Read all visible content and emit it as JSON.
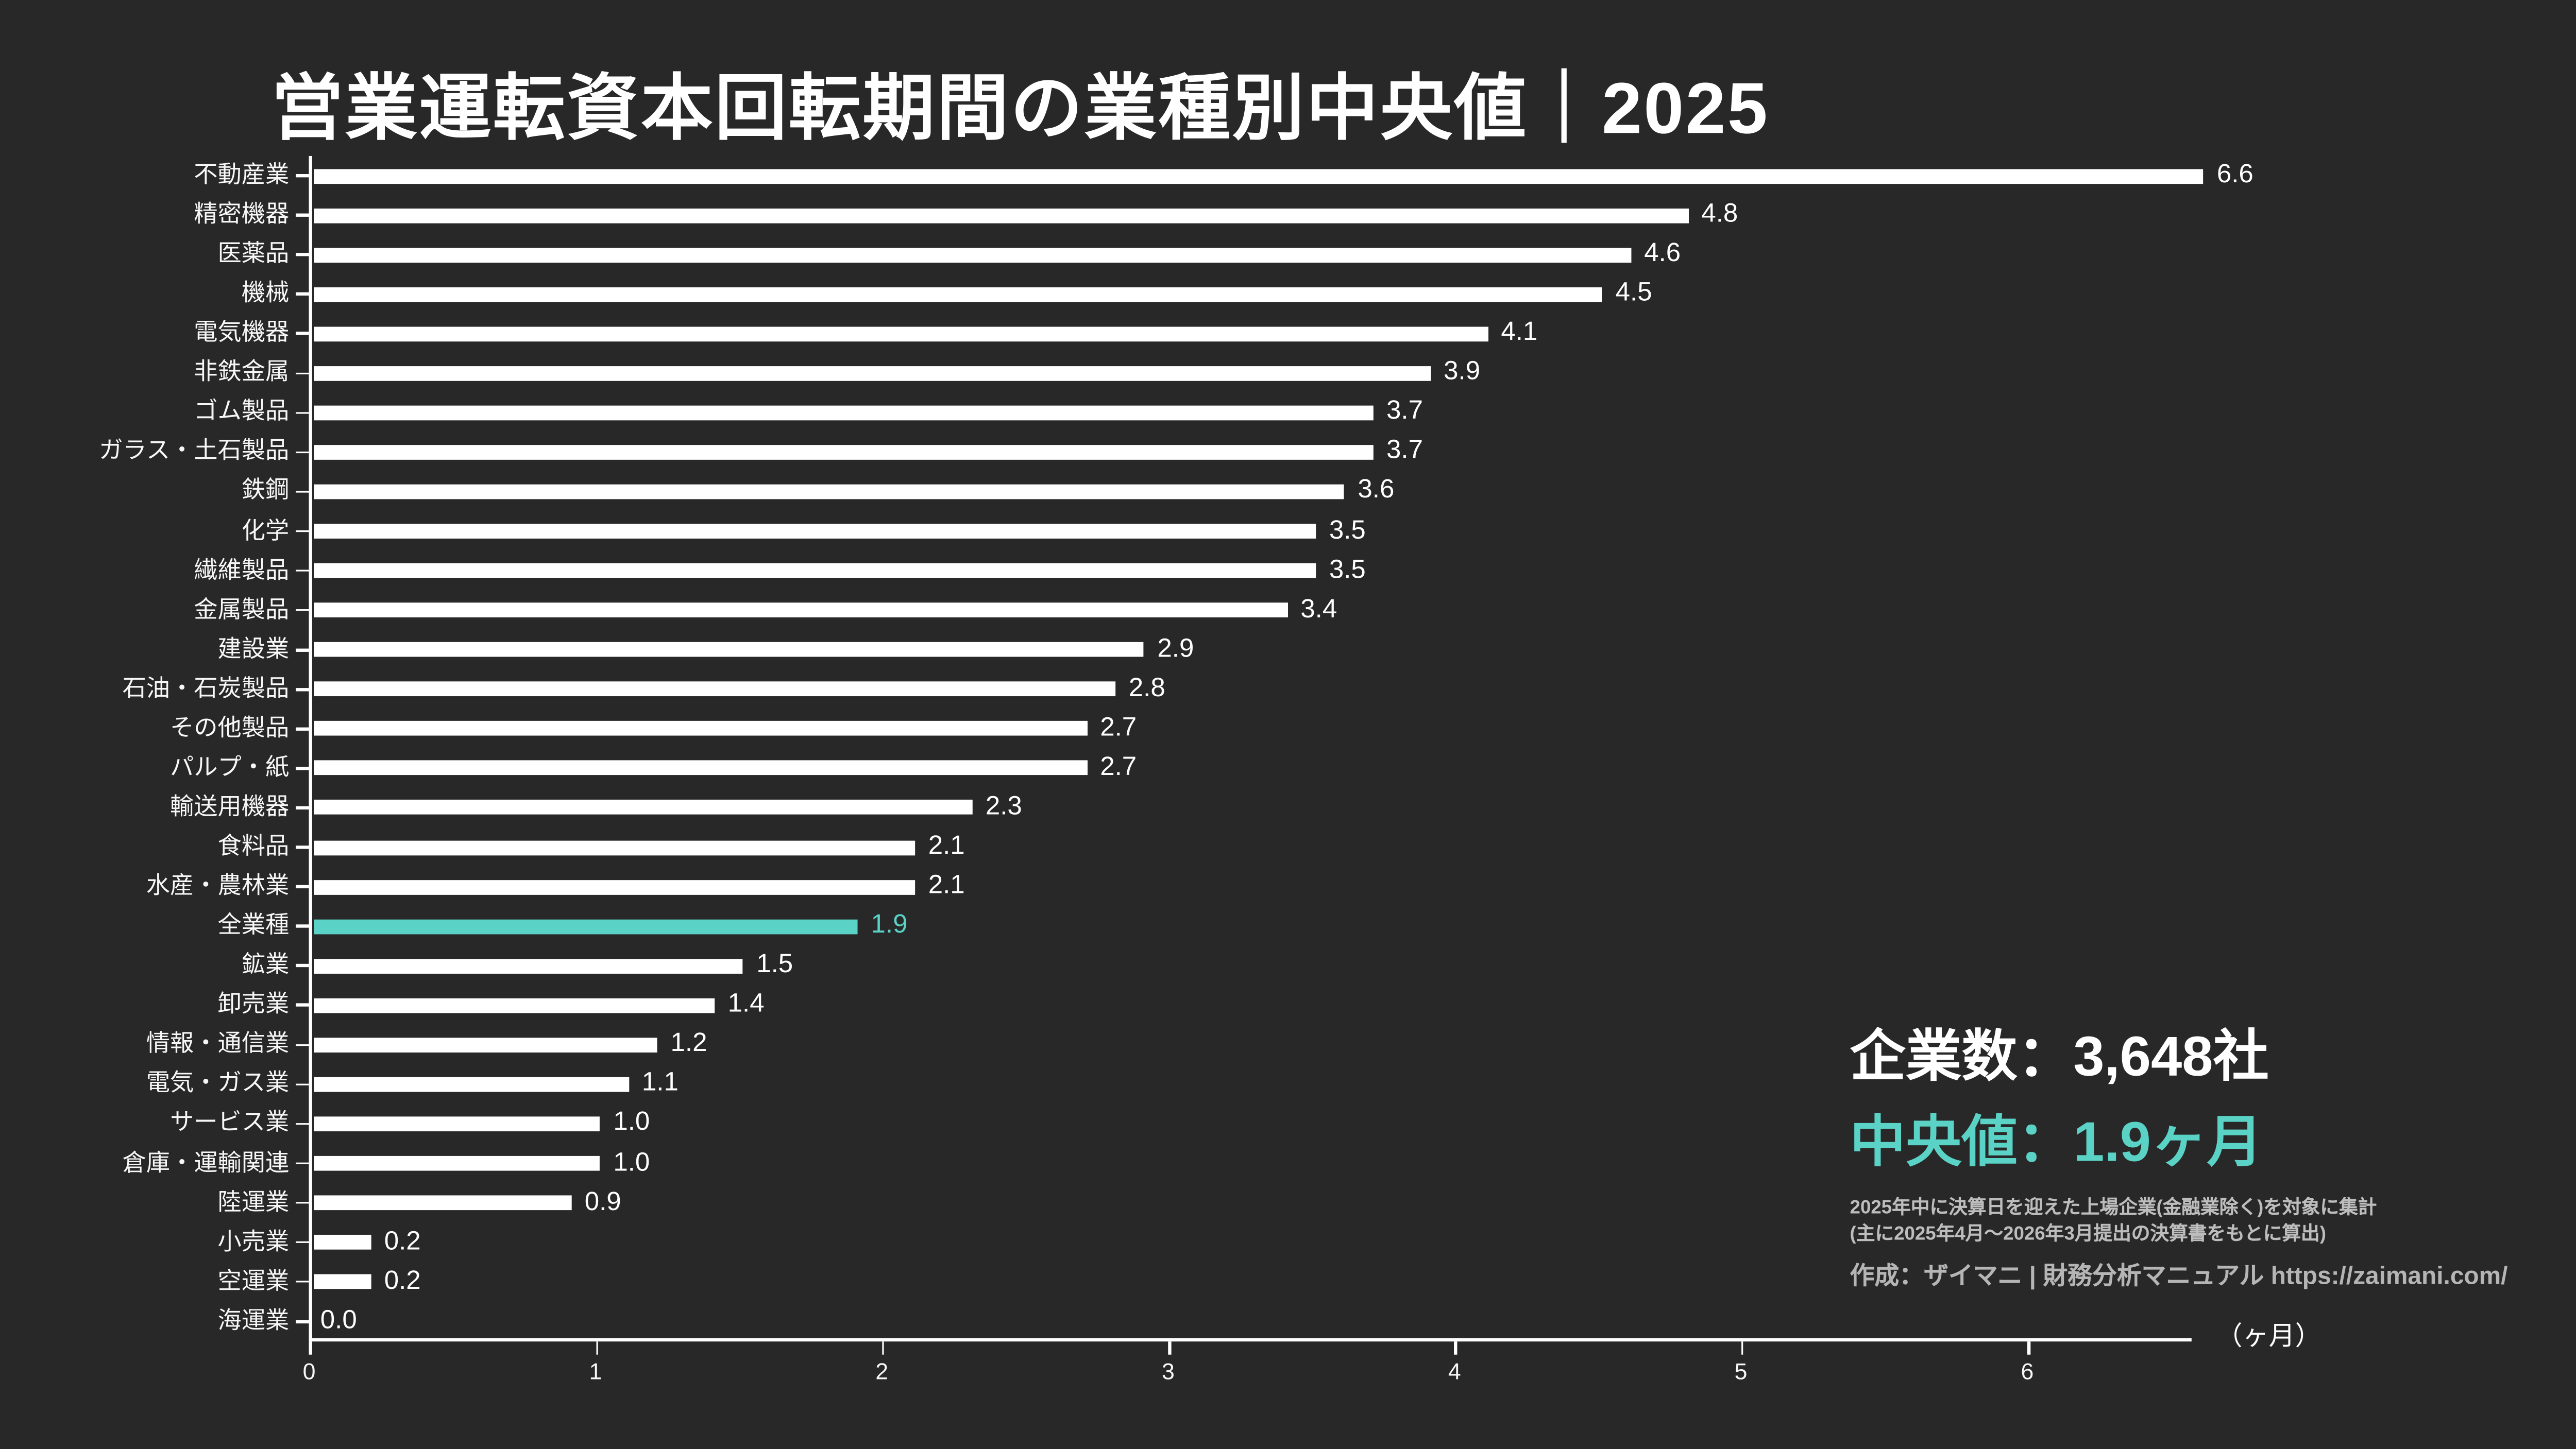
{
  "title": "営業運転資本回転期間の業種別中央値｜2025",
  "chart_data": {
    "type": "bar",
    "orientation": "horizontal",
    "title": "営業運転資本回転期間の業種別中央値｜2025",
    "categories": [
      "不動産業",
      "精密機器",
      "医薬品",
      "機械",
      "電気機器",
      "非鉄金属",
      "ゴム製品",
      "ガラス・土石製品",
      "鉄鋼",
      "化学",
      "繊維製品",
      "金属製品",
      "建設業",
      "石油・石炭製品",
      "その他製品",
      "パルプ・紙",
      "輸送用機器",
      "食料品",
      "水産・農林業",
      "全業種",
      "鉱業",
      "卸売業",
      "情報・通信業",
      "電気・ガス業",
      "サービス業",
      "倉庫・運輸関連",
      "陸運業",
      "小売業",
      "空運業",
      "海運業"
    ],
    "values": [
      6.6,
      4.8,
      4.6,
      4.5,
      4.1,
      3.9,
      3.7,
      3.7,
      3.6,
      3.5,
      3.5,
      3.4,
      2.9,
      2.8,
      2.7,
      2.7,
      2.3,
      2.1,
      2.1,
      1.9,
      1.5,
      1.4,
      1.2,
      1.1,
      1.0,
      1.0,
      0.9,
      0.2,
      0.2,
      0.0
    ],
    "value_labels": [
      "6.6",
      "4.8",
      "4.6",
      "4.5",
      "4.1",
      "3.9",
      "3.7",
      "3.7",
      "3.6",
      "3.5",
      "3.5",
      "3.4",
      "2.9",
      "2.8",
      "2.7",
      "2.7",
      "2.3",
      "2.1",
      "2.1",
      "1.9",
      "1.5",
      "1.4",
      "1.2",
      "1.1",
      "1.0",
      "1.0",
      "0.9",
      "0.2",
      "0.2",
      "0.0"
    ],
    "highlight_category": "全業種",
    "highlight_index": 19,
    "xlabel": "（ヶ月）",
    "x_ticks": [
      0,
      1,
      2,
      3,
      4,
      5,
      6
    ],
    "x_tick_labels": [
      "0",
      "1",
      "2",
      "3",
      "4",
      "5",
      "6"
    ],
    "xlim": [
      0,
      6.6
    ],
    "grid": false,
    "legend": false,
    "colors": {
      "background": "#282828",
      "bar": "#ffffff",
      "highlight": "#5bd2c6",
      "text": "#ffffff",
      "muted_text": "#bdbdbd"
    }
  },
  "stats": {
    "companies": "企業数：3,648社",
    "median": "中央値：1.9ヶ月"
  },
  "notes": {
    "line1": "2025年中に決算日を迎えた上場企業(金融業除く)を対象に集計",
    "line2": "(主に2025年4月～2026年3月提出の決算書をもとに算出)"
  },
  "credit": "作成：ザイマニ | 財務分析マニュアル https://zaimani.com/"
}
